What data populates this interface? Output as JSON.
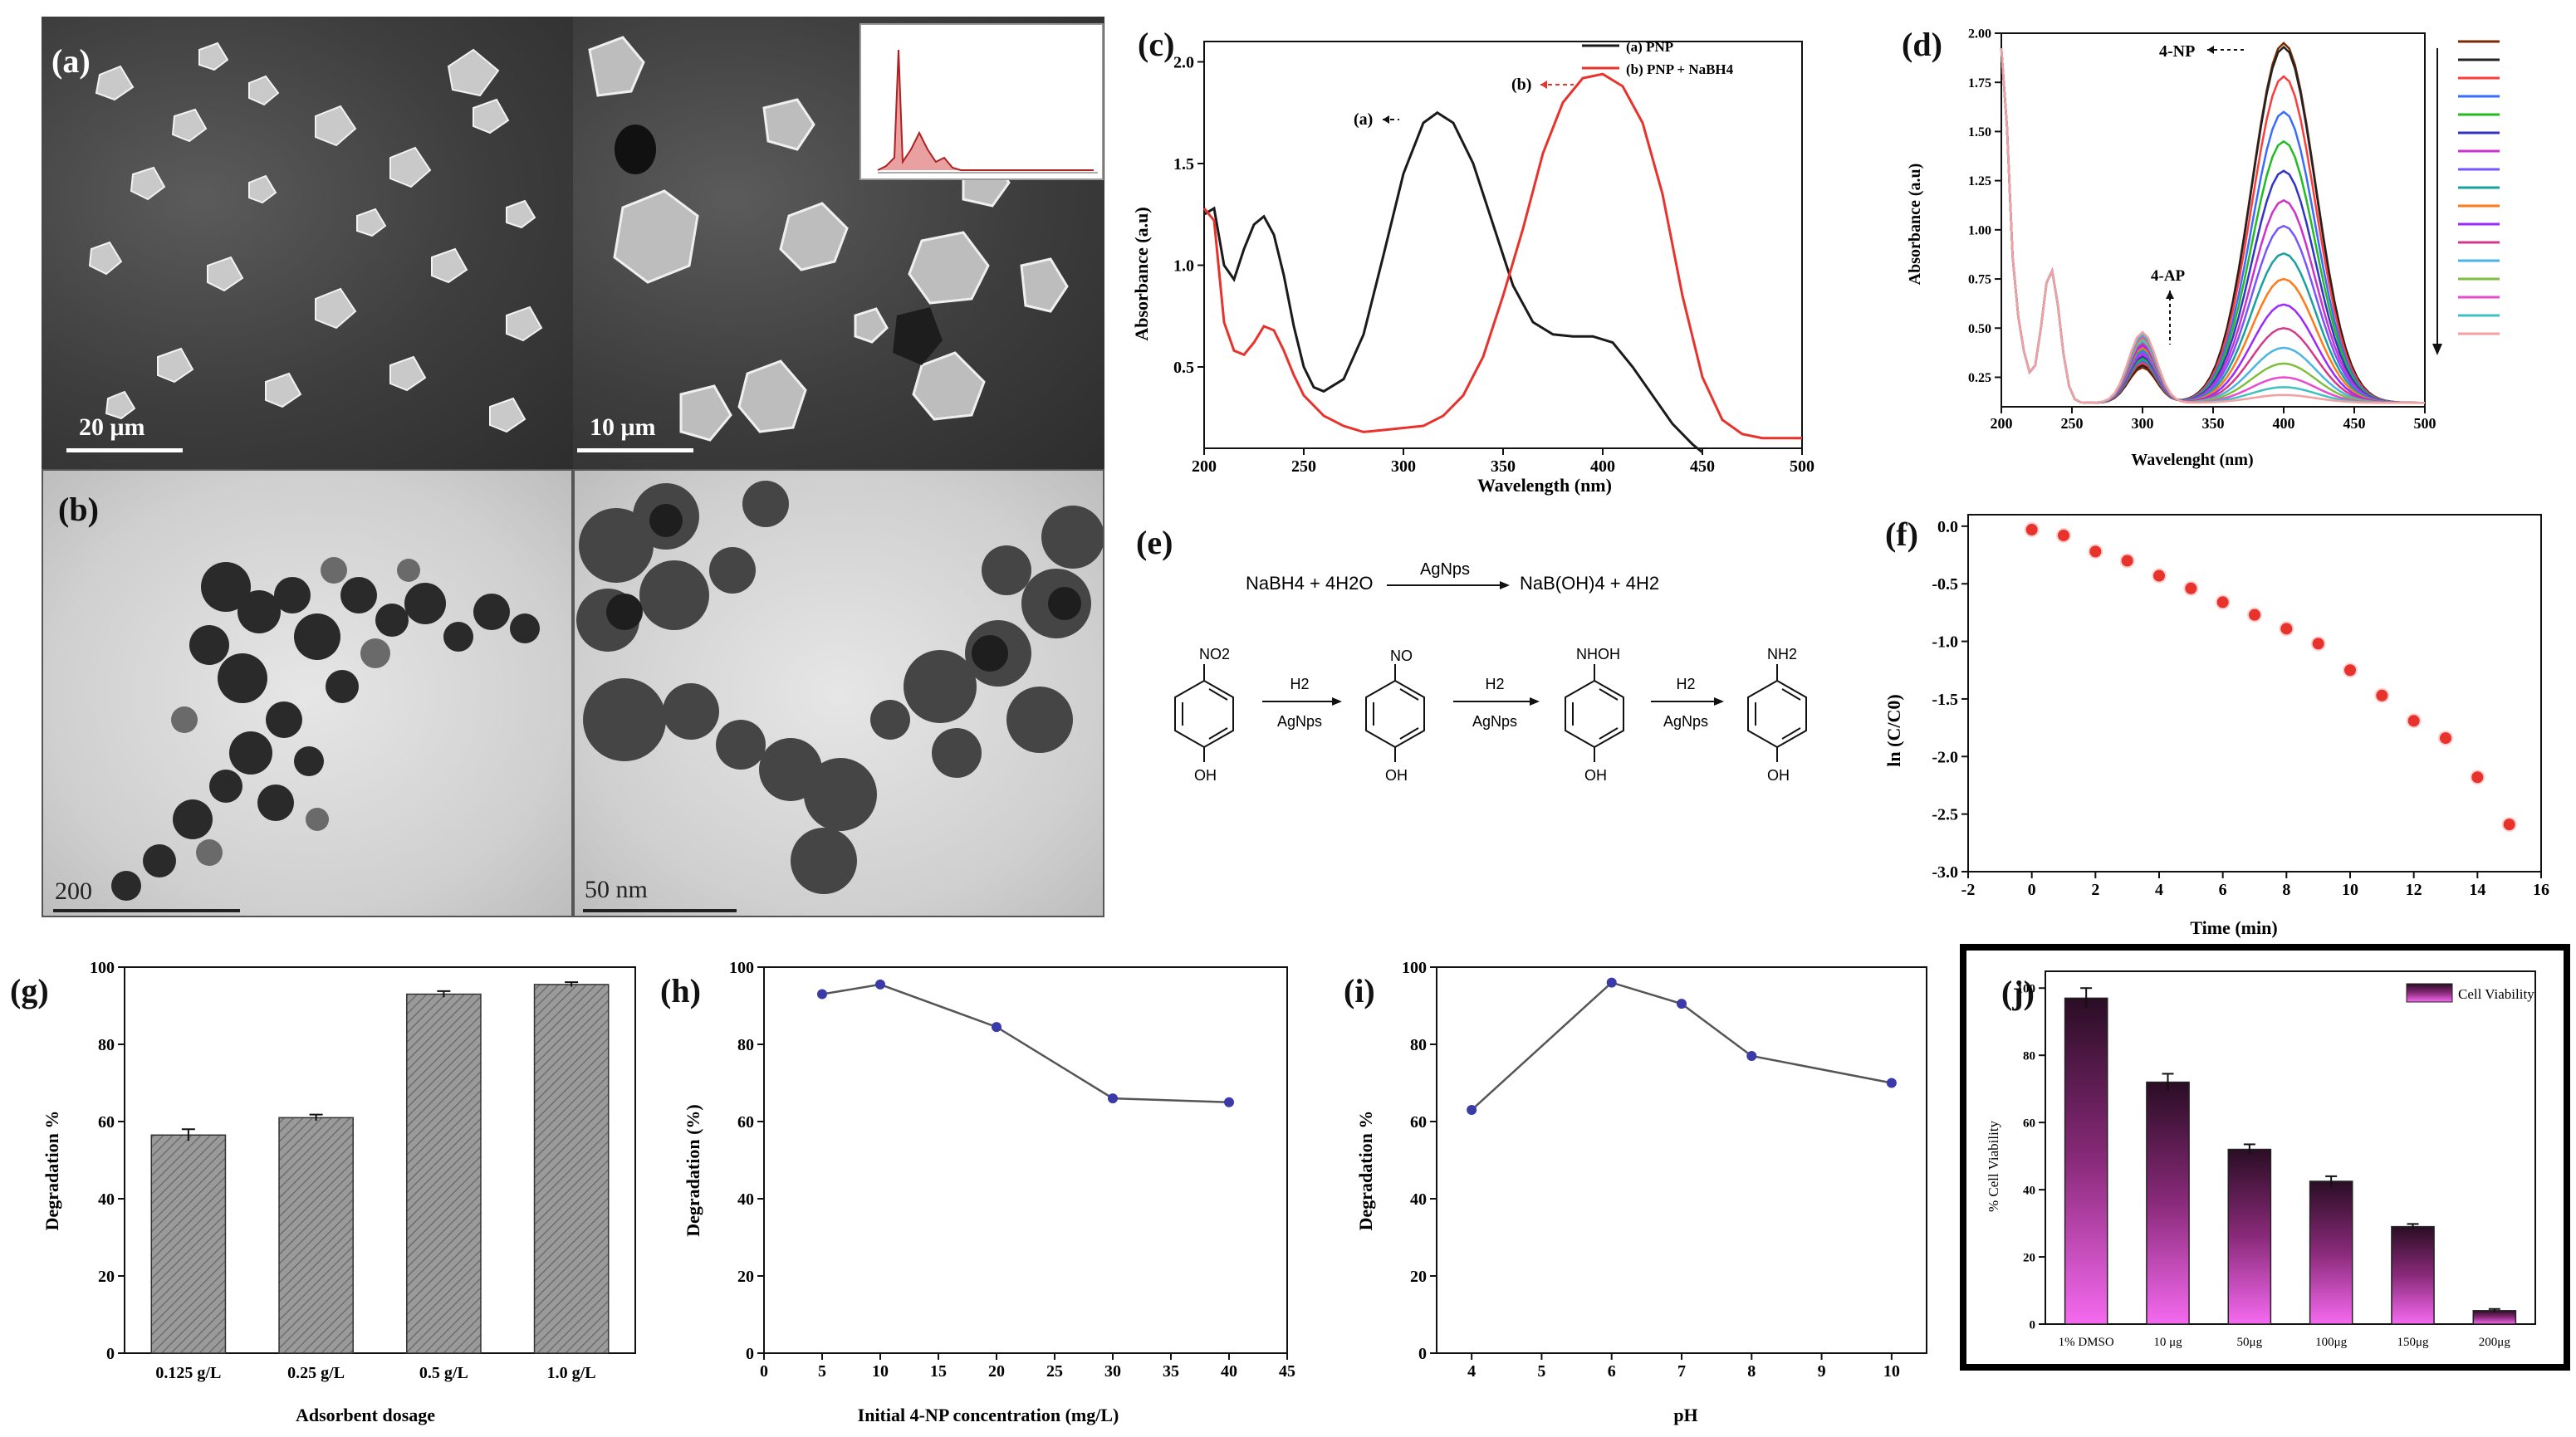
{
  "panels": {
    "a": {
      "letter": "(a)",
      "scale_left": "20 μm",
      "scale_right": "10 μm"
    },
    "b": {
      "letter": "(b)",
      "scale_left": "200",
      "scale_right": "50 nm"
    },
    "c": {
      "letter": "(c)",
      "xlabel": "Wavelength (nm)",
      "ylabel": "Absorbance (a.u)",
      "legend": [
        "(a) PNP",
        "(b) PNP + NaBH4"
      ],
      "annot_a": "(a)",
      "annot_b": "(b)"
    },
    "d": {
      "letter": "(d)",
      "xlabel": "Wavelenght (nm)",
      "ylabel": "Absorbance (a.u)",
      "annot_4np": "4-NP",
      "annot_4ap": "4-AP"
    },
    "e": {
      "letter": "(e)",
      "eq_left": "NaBH4 + 4H2O",
      "eq_catalyst": "AgNps",
      "eq_right": "NaB(OH)4 + 4H2",
      "step_reagent": "H2",
      "step_catalyst": "AgNps",
      "substituents": [
        "NO2",
        "NO",
        "NHOH",
        "NH2"
      ],
      "oh": "OH"
    },
    "f": {
      "letter": "(f)",
      "xlabel": "Time (min)",
      "ylabel": "ln (C/C0)"
    },
    "g": {
      "letter": "(g)",
      "xlabel": "Adsorbent dosage",
      "ylabel": "Degradation %"
    },
    "h": {
      "letter": "(h)",
      "xlabel": "Initial 4-NP concentration (mg/L)",
      "ylabel": "Degradation (%)"
    },
    "i": {
      "letter": "(i)",
      "xlabel": "pH",
      "ylabel": "Degradation %"
    },
    "j": {
      "letter": "(j)",
      "ylabel": "% Cell Viability",
      "legend": "Cell Viability"
    }
  },
  "chart_data": [
    {
      "id": "c",
      "type": "line",
      "xlim": [
        200,
        500
      ],
      "ylim": [
        0.1,
        2.1
      ],
      "xticks": [
        200,
        250,
        300,
        350,
        400,
        450,
        500
      ],
      "yticks": [
        0.5,
        1.0,
        1.5,
        2.0
      ],
      "series": [
        {
          "name": "(a) PNP",
          "color": "#1a1a1a",
          "x": [
            200,
            205,
            210,
            215,
            220,
            225,
            230,
            235,
            240,
            245,
            250,
            255,
            260,
            270,
            280,
            290,
            300,
            310,
            317,
            325,
            335,
            345,
            355,
            365,
            375,
            385,
            395,
            405,
            415,
            425,
            435,
            445,
            450
          ],
          "y": [
            1.25,
            1.28,
            1.0,
            0.93,
            1.08,
            1.2,
            1.24,
            1.15,
            0.95,
            0.7,
            0.5,
            0.4,
            0.38,
            0.44,
            0.66,
            1.05,
            1.45,
            1.7,
            1.75,
            1.7,
            1.5,
            1.2,
            0.9,
            0.72,
            0.66,
            0.65,
            0.65,
            0.62,
            0.5,
            0.36,
            0.22,
            0.12,
            0.08
          ]
        },
        {
          "name": "(b) PNP + NaBH4",
          "color": "#e8322c",
          "x": [
            200,
            205,
            210,
            215,
            220,
            225,
            230,
            235,
            240,
            245,
            250,
            260,
            270,
            280,
            290,
            300,
            310,
            320,
            330,
            340,
            350,
            360,
            370,
            380,
            390,
            400,
            410,
            420,
            430,
            440,
            450,
            460,
            470,
            480,
            490,
            500
          ],
          "y": [
            1.28,
            1.22,
            0.72,
            0.58,
            0.56,
            0.62,
            0.7,
            0.68,
            0.58,
            0.46,
            0.36,
            0.26,
            0.21,
            0.18,
            0.19,
            0.2,
            0.21,
            0.26,
            0.36,
            0.55,
            0.85,
            1.18,
            1.55,
            1.8,
            1.92,
            1.94,
            1.88,
            1.7,
            1.35,
            0.85,
            0.45,
            0.24,
            0.17,
            0.15,
            0.15,
            0.15
          ]
        }
      ]
    },
    {
      "id": "d",
      "type": "line",
      "xlim": [
        200,
        500
      ],
      "ylim": [
        0.1,
        2.0
      ],
      "xticks": [
        200,
        250,
        300,
        350,
        400,
        450,
        500
      ],
      "yticks": [
        0.25,
        0.5,
        0.75,
        1.0,
        1.25,
        1.5,
        1.75,
        2.0
      ],
      "peak_values": [
        1.95,
        1.93,
        1.78,
        1.6,
        1.45,
        1.3,
        1.15,
        1.02,
        0.88,
        0.75,
        0.62,
        0.5,
        0.4,
        0.32,
        0.25,
        0.2,
        0.16
      ],
      "colors": [
        "#7a2b00",
        "#222222",
        "#ff3b3b",
        "#3a6cff",
        "#22bb22",
        "#3333cc",
        "#cc33cc",
        "#7755ff",
        "#1aa0a0",
        "#ff7a1a",
        "#9a2aff",
        "#d43a8a",
        "#4bb4e6",
        "#7fbf3f",
        "#e64bd1",
        "#40c0c0",
        "#f2a0a0"
      ]
    },
    {
      "id": "f",
      "type": "scatter",
      "xlim": [
        -2,
        16
      ],
      "ylim": [
        -3.0,
        0.1
      ],
      "xticks": [
        -2,
        0,
        2,
        4,
        6,
        8,
        10,
        12,
        14,
        16
      ],
      "yticks": [
        0.0,
        -0.5,
        -1.0,
        -1.5,
        -2.0,
        -2.5,
        -3.0
      ],
      "x": [
        0,
        1,
        2,
        3,
        4,
        5,
        6,
        7,
        8,
        9,
        10,
        11,
        12,
        13,
        14,
        15
      ],
      "y": [
        -0.03,
        -0.08,
        -0.22,
        -0.3,
        -0.43,
        -0.54,
        -0.66,
        -0.77,
        -0.89,
        -1.02,
        -1.25,
        -1.47,
        -1.69,
        -1.84,
        -2.18,
        -2.59
      ]
    },
    {
      "id": "g",
      "type": "bar",
      "categories": [
        "0.125 g/L",
        "0.25 g/L",
        "0.5 g/L",
        "1.0 g/L"
      ],
      "values": [
        56.5,
        61,
        93,
        95.5
      ],
      "errors": [
        1.5,
        0.8,
        0.8,
        0.6
      ],
      "ylim": [
        0,
        100
      ],
      "yticks": [
        0,
        20,
        40,
        60,
        80,
        100
      ]
    },
    {
      "id": "h",
      "type": "line",
      "xlim": [
        0,
        45
      ],
      "ylim": [
        0,
        100
      ],
      "xticks": [
        0,
        5,
        10,
        15,
        20,
        25,
        30,
        35,
        40,
        45
      ],
      "yticks": [
        0,
        20,
        40,
        60,
        80,
        100
      ],
      "x": [
        5,
        10,
        20,
        30,
        40
      ],
      "y": [
        93,
        95.5,
        84.5,
        66,
        65
      ]
    },
    {
      "id": "i",
      "type": "line",
      "xlim": [
        3.5,
        10.5
      ],
      "ylim": [
        0,
        100
      ],
      "xticks": [
        4,
        5,
        6,
        7,
        8,
        9,
        10
      ],
      "yticks": [
        0,
        20,
        40,
        60,
        80,
        100
      ],
      "x": [
        4,
        6,
        7,
        8,
        10
      ],
      "y": [
        63,
        96,
        90.5,
        77,
        70
      ]
    },
    {
      "id": "j",
      "type": "bar",
      "categories": [
        "1% DMSO",
        "10 μg",
        "50μg",
        "100μg",
        "150μg",
        "200μg"
      ],
      "values": [
        97,
        72,
        52,
        42.5,
        29,
        4
      ],
      "errors": [
        3,
        2.5,
        1.5,
        1.5,
        0.8,
        0.5
      ],
      "ylim": [
        0,
        105
      ],
      "yticks": [
        0,
        20,
        40,
        60,
        80,
        100
      ]
    }
  ]
}
